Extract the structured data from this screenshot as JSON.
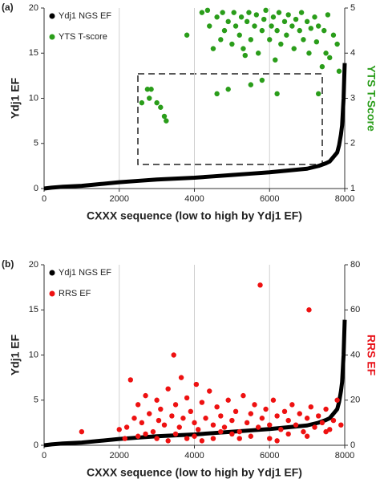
{
  "chart_data": [
    {
      "type": "scatter",
      "panel_label": "(a)",
      "x_label": "CXXX sequence (low to high by Ydj1 EF)",
      "y_label": "Ydj1 EF",
      "y2_label": "YTS T-Score",
      "y2_label_color": "#2a9d1a",
      "xlim": [
        0,
        8000
      ],
      "xticks": [
        0,
        2000,
        4000,
        6000,
        8000
      ],
      "ylim": [
        0,
        20
      ],
      "yticks": [
        0,
        5,
        10,
        15,
        20
      ],
      "y2lim": [
        1,
        5
      ],
      "y2ticks": [
        1,
        2,
        3,
        4,
        5
      ],
      "grid": true,
      "legend": "upper left",
      "series": [
        {
          "name": "Ydj1 NGS EF",
          "color": "#000000",
          "style": "line",
          "x": [
            0,
            200,
            500,
            1000,
            1500,
            2000,
            2500,
            3000,
            3500,
            4000,
            4500,
            5000,
            5500,
            6000,
            6500,
            7000,
            7300,
            7500,
            7600,
            7700,
            7800,
            7850,
            7900,
            7930,
            7950,
            7970,
            7985,
            8000
          ],
          "values": [
            0,
            0.1,
            0.2,
            0.3,
            0.5,
            0.7,
            0.85,
            1,
            1.1,
            1.2,
            1.35,
            1.5,
            1.65,
            1.8,
            2,
            2.2,
            2.5,
            2.8,
            3,
            3.5,
            4,
            4.8,
            6,
            7,
            8.5,
            10,
            12,
            13.9
          ]
        },
        {
          "name": "YTS T-score",
          "color": "#2a9d1a",
          "style": "points",
          "axis": "y2",
          "x": [
            2600,
            2750,
            2800,
            2850,
            3000,
            3100,
            3200,
            3250,
            4600,
            5500,
            5800,
            6200,
            7300,
            4900,
            3800,
            4400,
            4500,
            4600,
            4700,
            4750,
            4800,
            4900,
            5000,
            5050,
            5100,
            5200,
            5250,
            5300,
            5400,
            5450,
            5500,
            5600,
            5650,
            5700,
            5800,
            5850,
            5900,
            6000,
            6050,
            6100,
            6200,
            6250,
            6300,
            6400,
            6450,
            6500,
            6600,
            6650,
            6700,
            6800,
            6850,
            6900,
            7000,
            7050,
            7100,
            7200,
            7250,
            7300,
            7400,
            7450,
            7500,
            7550,
            7600,
            7700,
            7800,
            7850,
            4200,
            5350,
            6150,
            4350
          ],
          "values": [
            2.9,
            3.2,
            3.0,
            3.2,
            2.9,
            2.8,
            2.6,
            2.5,
            3.1,
            3.3,
            3.4,
            3.1,
            3.1,
            3.2,
            4.4,
            4.6,
            4.1,
            4.8,
            4.3,
            4.9,
            4.5,
            4.7,
            4.2,
            4.9,
            4.6,
            4.4,
            4.8,
            4.1,
            4.7,
            4.9,
            4.3,
            4.6,
            4.85,
            4.0,
            4.5,
            4.75,
            4.95,
            4.3,
            4.6,
            4.8,
            4.5,
            4.9,
            4.2,
            4.7,
            4.4,
            4.85,
            4.6,
            4.1,
            4.75,
            4.5,
            4.9,
            4.3,
            4.7,
            4.0,
            4.55,
            4.8,
            4.25,
            4.6,
            3.7,
            4.5,
            4.0,
            4.85,
            3.9,
            4.4,
            4.2,
            3.6,
            4.9,
            3.95,
            3.85,
            4.95
          ]
        }
      ]
    },
    {
      "type": "scatter",
      "panel_label": "(b)",
      "x_label": "CXXX sequence (low to high by Ydj1 EF)",
      "y_label": "Ydj1 EF",
      "y2_label": "RRS EF",
      "y2_label_color": "#e8141b",
      "xlim": [
        0,
        8000
      ],
      "xticks": [
        0,
        2000,
        4000,
        6000,
        8000
      ],
      "ylim": [
        0,
        20
      ],
      "yticks": [
        0,
        5,
        10,
        15,
        20
      ],
      "y2lim": [
        0,
        80
      ],
      "y2ticks": [
        0,
        20,
        40,
        60,
        80
      ],
      "grid": true,
      "legend": "upper left",
      "series": [
        {
          "name": "Ydj1 NGS EF",
          "color": "#000000",
          "style": "line",
          "x": [
            0,
            200,
            500,
            1000,
            1500,
            2000,
            2500,
            3000,
            3500,
            4000,
            4500,
            5000,
            5500,
            6000,
            6500,
            7000,
            7300,
            7500,
            7600,
            7700,
            7800,
            7850,
            7900,
            7930,
            7950,
            7970,
            7985,
            8000
          ],
          "values": [
            0,
            0.1,
            0.2,
            0.3,
            0.5,
            0.7,
            0.85,
            1,
            1.1,
            1.2,
            1.35,
            1.5,
            1.65,
            1.8,
            2,
            2.2,
            2.5,
            2.8,
            3,
            3.5,
            4,
            4.8,
            6,
            7,
            8.5,
            10,
            12,
            13.9
          ]
        },
        {
          "name": "RRS EF",
          "color": "#ee1111",
          "style": "points",
          "axis": "y2",
          "x": [
            1000,
            2000,
            2200,
            2300,
            2400,
            2500,
            2600,
            2700,
            2800,
            2900,
            3000,
            3050,
            3100,
            3200,
            3300,
            3400,
            3450,
            3500,
            3600,
            3650,
            3700,
            3800,
            3900,
            4000,
            4050,
            4100,
            4200,
            4300,
            4400,
            4500,
            4600,
            4700,
            4800,
            4900,
            5000,
            5100,
            5200,
            5300,
            5400,
            5500,
            5600,
            5700,
            5750,
            5800,
            5900,
            6000,
            6100,
            6200,
            6300,
            6400,
            6500,
            6600,
            6700,
            6800,
            6900,
            7000,
            7050,
            7100,
            7200,
            7300,
            7400,
            7500,
            7600,
            7700,
            7800,
            7900,
            2500,
            3000,
            3500,
            4000,
            4500,
            5000,
            5500,
            6000,
            6500,
            7000,
            7500,
            3300,
            4200,
            5200,
            6200,
            2150,
            2700,
            3800,
            4700
          ],
          "values": [
            6,
            7,
            8,
            29,
            12,
            18,
            10,
            22,
            14,
            6,
            20,
            11,
            16,
            9,
            25,
            13,
            40,
            18,
            8,
            30,
            12,
            21,
            15,
            10,
            27,
            7,
            19,
            12,
            24,
            9,
            17,
            13,
            8,
            20,
            11,
            15,
            6,
            22,
            10,
            14,
            18,
            8,
            71,
            12,
            16,
            9,
            20,
            13,
            7,
            15,
            11,
            18,
            9,
            14,
            6,
            12,
            60,
            17,
            8,
            13,
            10,
            16,
            7,
            11,
            20,
            9,
            4,
            3,
            5,
            4,
            3,
            5,
            4,
            3,
            5,
            4,
            6,
            2,
            2,
            3,
            2,
            3,
            5,
            3,
            6
          ]
        }
      ]
    }
  ]
}
